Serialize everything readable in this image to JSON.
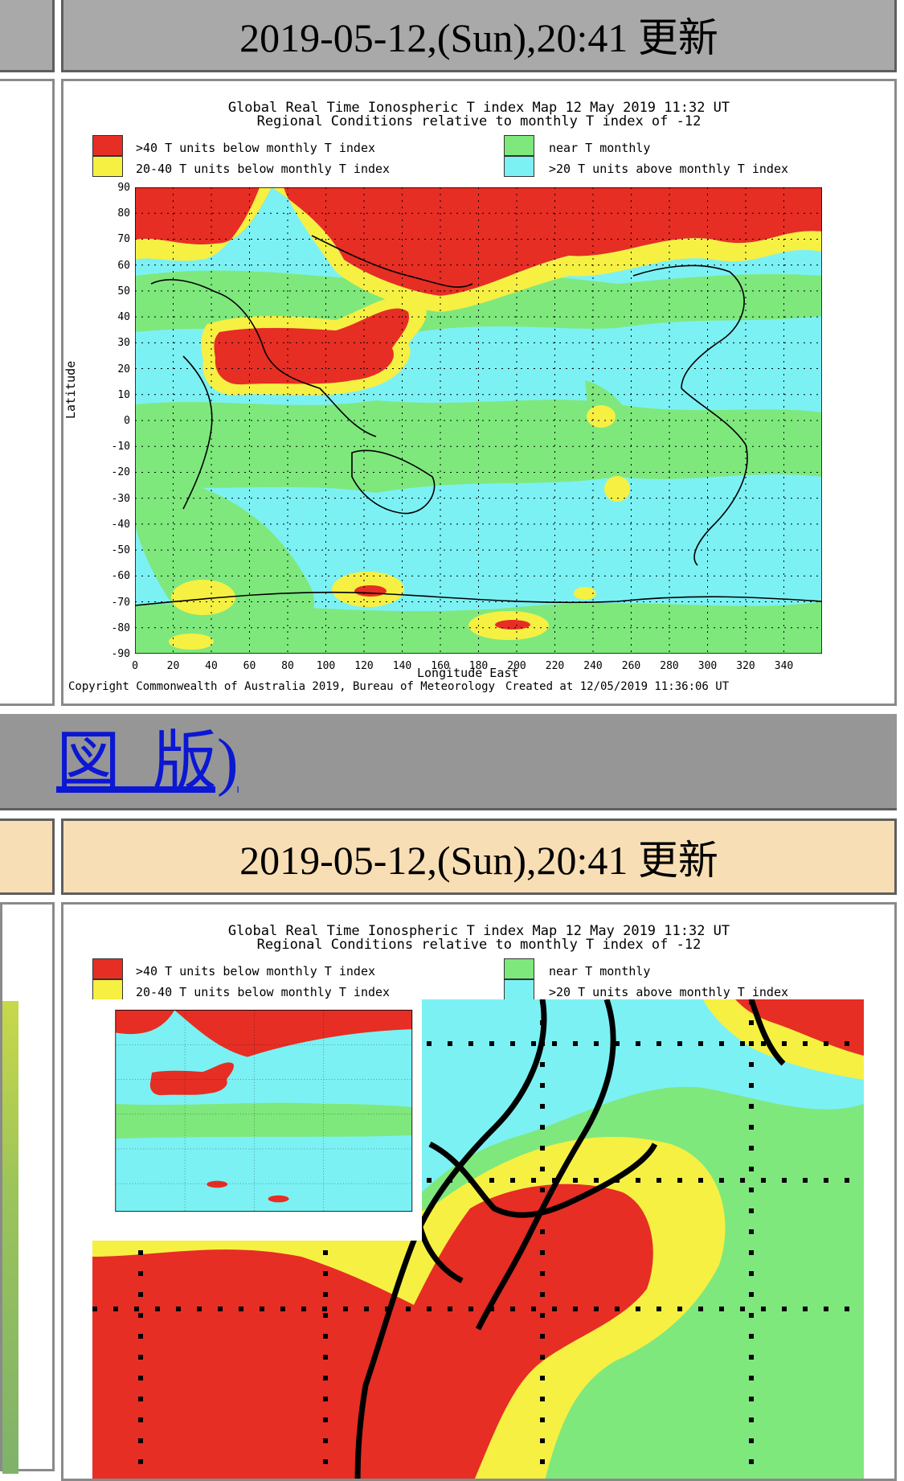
{
  "header1": {
    "text": "2019-05-12,(Sun),20:41 更新"
  },
  "header2": {
    "text": "2019-05-12,(Sun),20:41 更新"
  },
  "map": {
    "title_line1": "Global Real Time Ionospheric T index Map 12 May 2019 11:32 UT",
    "title_line2": "Regional Conditions relative to monthly T index of -12",
    "legend": [
      {
        "label": ">40 T units below monthly T index",
        "color": "#e62e24"
      },
      {
        "label": "20-40 T units below monthly T index",
        "color": "#f6f043"
      },
      {
        "label": "near T monthly",
        "color": "#7ee87d"
      },
      {
        "label": ">20 T units above monthly T index",
        "color": "#7cf1f4"
      }
    ],
    "ylabel": "Latitude",
    "xlabel": "Longitude East",
    "yticks": [
      "90",
      "80",
      "70",
      "60",
      "50",
      "40",
      "30",
      "20",
      "10",
      "0",
      "-10",
      "-20",
      "-30",
      "-40",
      "-50",
      "-60",
      "-70",
      "-80",
      "-90"
    ],
    "xticks": [
      "0",
      "20",
      "40",
      "60",
      "80",
      "100",
      "120",
      "140",
      "160",
      "180",
      "200",
      "220",
      "240",
      "260",
      "280",
      "300",
      "320",
      "340"
    ],
    "copyright": "Copyright Commonwealth of Australia 2019, Bureau of Meteorology",
    "created": "Created at 12/05/2019 11:36:06 UT"
  },
  "link": {
    "text": "図  版)"
  },
  "colors": {
    "red": "#e62e24",
    "yellow": "#f6f043",
    "green": "#7ee87d",
    "cyan": "#7cf1f4"
  }
}
